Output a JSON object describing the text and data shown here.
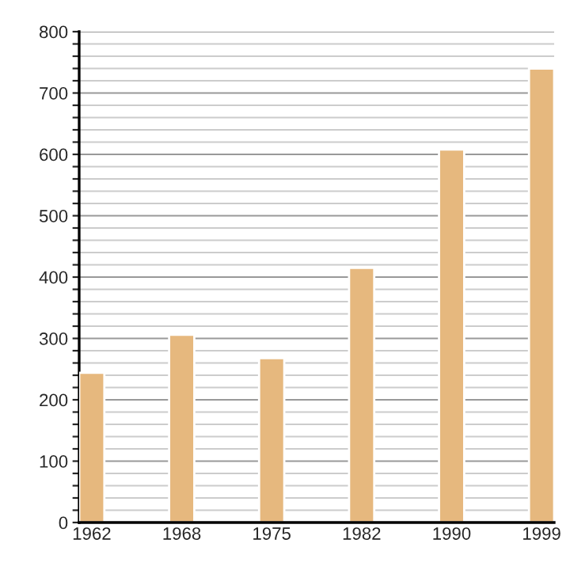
{
  "chart_data": {
    "type": "bar",
    "categories": [
      "1962",
      "1968",
      "1975",
      "1982",
      "1990",
      "1999"
    ],
    "values": [
      244,
      306,
      268,
      415,
      608,
      740
    ],
    "color": "#e6b87e",
    "ylim": [
      0,
      800
    ],
    "yticks": [
      0,
      {
        "value": 20,
        "label": null
      },
      {
        "value": 40,
        "label": null
      },
      {
        "value": 60,
        "label": null
      },
      {
        "value": 80,
        "label": null
      },
      100,
      {
        "value": 120,
        "label": null
      },
      {
        "value": 140,
        "label": null
      },
      {
        "value": 160,
        "label": null
      },
      {
        "value": 180,
        "label": null
      },
      200,
      {
        "value": 220,
        "label": null
      },
      {
        "value": 240,
        "label": null
      },
      {
        "value": 260,
        "label": null
      },
      {
        "value": 280,
        "label": null
      },
      300,
      {
        "value": 320,
        "label": null
      },
      {
        "value": 340,
        "label": null
      },
      {
        "value": 360,
        "label": null
      },
      {
        "value": 380,
        "label": null
      },
      400,
      {
        "value": 420,
        "label": null
      },
      {
        "value": 440,
        "label": null
      },
      {
        "value": 460,
        "label": null
      },
      {
        "value": 480,
        "label": null
      },
      500,
      {
        "value": 520,
        "label": null
      },
      {
        "value": 540,
        "label": null
      },
      {
        "value": 560,
        "label": null
      },
      {
        "value": 580,
        "label": null
      },
      600,
      {
        "value": 620,
        "label": null
      },
      {
        "value": 640,
        "label": null
      },
      {
        "value": 660,
        "label": null
      },
      {
        "value": 680,
        "label": null
      },
      700,
      {
        "value": 720,
        "label": null
      },
      {
        "value": 740,
        "label": null
      },
      {
        "value": 760,
        "label": null
      },
      {
        "value": 780,
        "label": null
      },
      800
    ],
    "grid": "y"
  }
}
